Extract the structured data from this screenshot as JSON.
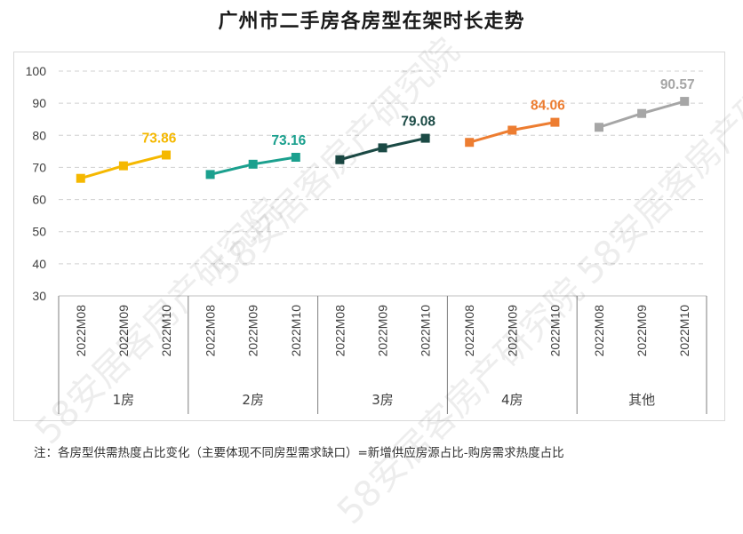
{
  "title": "广州市二手房各房型在架时长走势",
  "note": "注：各房型供需热度占比变化（主要体现不同房型需求缺口）=新增供应房源占比-购房需求热度占比",
  "watermark": "58安居客房产研究院",
  "chart_data": {
    "type": "line",
    "title": "广州市二手房各房型在架时长走势",
    "ylim": [
      30,
      100
    ],
    "yticks": [
      "30",
      "40",
      "50",
      "60",
      "70",
      "80",
      "90",
      "100"
    ],
    "x_sub_labels": [
      "2022M08",
      "2022M09",
      "2022M10"
    ],
    "grid": true,
    "groups": [
      {
        "name": "1房",
        "values": [
          66.6,
          70.5,
          73.86
        ],
        "label": "73.86",
        "color": "#F5B800"
      },
      {
        "name": "2房",
        "values": [
          67.8,
          71.0,
          73.16
        ],
        "label": "73.16",
        "color": "#1BA08E"
      },
      {
        "name": "3房",
        "values": [
          72.4,
          76.1,
          79.08
        ],
        "label": "79.08",
        "color": "#1B4A45"
      },
      {
        "name": "4房",
        "values": [
          77.8,
          81.6,
          84.06
        ],
        "label": "84.06",
        "color": "#ED7D31"
      },
      {
        "name": "其他",
        "values": [
          82.5,
          86.8,
          90.57
        ],
        "label": "90.57",
        "color": "#A6A6A6"
      }
    ]
  }
}
